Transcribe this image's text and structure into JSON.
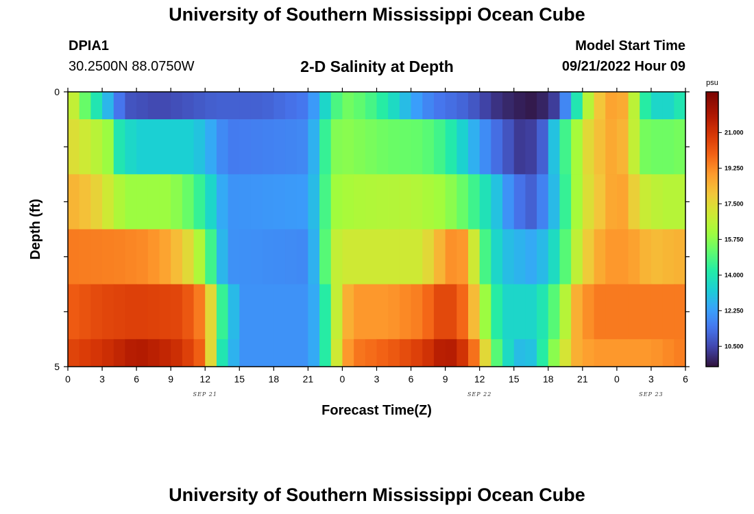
{
  "header": {
    "title": "University of Southern Mississippi Ocean Cube",
    "station_id": "DPIA1",
    "station_coords": "30.2500N  88.0750W",
    "run_label": "Model Start Time",
    "run_value": "09/21/2022 Hour 09"
  },
  "footer": {
    "title": "University of Southern Mississippi Ocean Cube"
  },
  "chart_data": {
    "type": "heatmap",
    "title": "2-D Salinity at Depth",
    "xlabel": "Forecast Time(Z)",
    "ylabel": "Depth (ft)",
    "colorbar_unit": "psu",
    "y_tick_labels": [
      {
        "depth": 0,
        "label": "0"
      },
      {
        "depth": 5,
        "label": "5"
      }
    ],
    "y_minor_ticks": [
      1,
      2,
      3,
      4
    ],
    "ylim": [
      0,
      5
    ],
    "x_range_hours": [
      0,
      54
    ],
    "x_tick_labels": [
      {
        "hour": 0,
        "label": "0"
      },
      {
        "hour": 3,
        "label": "3"
      },
      {
        "hour": 6,
        "label": "6"
      },
      {
        "hour": 9,
        "label": "9"
      },
      {
        "hour": 12,
        "label": "12"
      },
      {
        "hour": 15,
        "label": "15"
      },
      {
        "hour": 18,
        "label": "18"
      },
      {
        "hour": 21,
        "label": "21"
      },
      {
        "hour": 24,
        "label": "0"
      },
      {
        "hour": 27,
        "label": "3"
      },
      {
        "hour": 30,
        "label": "6"
      },
      {
        "hour": 33,
        "label": "9"
      },
      {
        "hour": 36,
        "label": "12"
      },
      {
        "hour": 39,
        "label": "15"
      },
      {
        "hour": 42,
        "label": "18"
      },
      {
        "hour": 45,
        "label": "21"
      },
      {
        "hour": 48,
        "label": "0"
      },
      {
        "hour": 51,
        "label": "3"
      },
      {
        "hour": 54,
        "label": "6"
      }
    ],
    "date_labels": [
      {
        "hour": 12,
        "label": "SEP 21"
      },
      {
        "hour": 36,
        "label": "SEP 22"
      },
      {
        "hour": 51,
        "label": "SEP 23"
      }
    ],
    "colorbar": {
      "range": [
        9.5,
        23.0
      ],
      "ticks": [
        10.5,
        12.25,
        14.0,
        15.75,
        17.5,
        19.25,
        21.0
      ],
      "tick_labels": [
        "10.500",
        "12.250",
        "14.000",
        "15.750",
        "17.500",
        "19.250",
        "21.000"
      ]
    },
    "layers": [
      {
        "depth_top": 0,
        "depth_bottom": 0.5,
        "keys": [
          [
            0,
            17.5
          ],
          [
            1,
            16.0
          ],
          [
            2,
            14.5
          ],
          [
            3,
            13.5
          ],
          [
            4,
            12.0
          ],
          [
            5,
            10.8
          ],
          [
            8,
            10.5
          ],
          [
            13,
            11.0
          ],
          [
            17,
            11.0
          ],
          [
            21,
            11.5
          ],
          [
            22.5,
            13.5
          ],
          [
            24,
            15.5
          ],
          [
            26,
            15.0
          ],
          [
            28,
            14.0
          ],
          [
            30,
            12.5
          ],
          [
            32,
            11.5
          ],
          [
            35,
            11.0
          ],
          [
            37,
            10.2
          ],
          [
            39,
            9.8
          ],
          [
            41,
            9.6
          ],
          [
            42.5,
            10.3
          ],
          [
            44,
            12.5
          ],
          [
            45,
            15.5
          ],
          [
            46,
            17.5
          ],
          [
            47,
            18.5
          ],
          [
            48,
            19.0
          ],
          [
            49,
            18.2
          ],
          [
            50,
            15.0
          ],
          [
            51,
            13.5
          ],
          [
            53,
            13.5
          ],
          [
            54,
            14.5
          ]
        ]
      },
      {
        "depth_top": 0.5,
        "depth_bottom": 1.5,
        "keys": [
          [
            0,
            17.5
          ],
          [
            2,
            16.8
          ],
          [
            3.5,
            16.0
          ],
          [
            4.5,
            14.0
          ],
          [
            6,
            13.3
          ],
          [
            11,
            13.3
          ],
          [
            12.5,
            12.5
          ],
          [
            14,
            11.5
          ],
          [
            21,
            11.8
          ],
          [
            22,
            13.5
          ],
          [
            23,
            15.5
          ],
          [
            24,
            15.8
          ],
          [
            28,
            15.3
          ],
          [
            31,
            15.2
          ],
          [
            33,
            14.5
          ],
          [
            35,
            13.0
          ],
          [
            37,
            11.5
          ],
          [
            39,
            10.5
          ],
          [
            40,
            10.0
          ],
          [
            41.5,
            11.0
          ],
          [
            42.5,
            13.0
          ],
          [
            44,
            15.5
          ],
          [
            45.5,
            17.5
          ],
          [
            47,
            18.5
          ],
          [
            48,
            18.8
          ],
          [
            49,
            18.0
          ],
          [
            50,
            15.5
          ],
          [
            52,
            15.3
          ],
          [
            54,
            15.5
          ]
        ]
      },
      {
        "depth_top": 1.5,
        "depth_bottom": 2.5,
        "keys": [
          [
            0,
            18.5
          ],
          [
            2,
            18.0
          ],
          [
            3.5,
            17.0
          ],
          [
            5,
            16.0
          ],
          [
            9,
            16.0
          ],
          [
            11,
            15.0
          ],
          [
            12.5,
            13.5
          ],
          [
            14,
            12.0
          ],
          [
            21,
            12.2
          ],
          [
            22,
            13.5
          ],
          [
            23,
            16.0
          ],
          [
            25,
            16.3
          ],
          [
            30,
            16.5
          ],
          [
            33,
            16.0
          ],
          [
            35,
            15.0
          ],
          [
            37,
            13.5
          ],
          [
            39,
            11.5
          ],
          [
            40.5,
            11.0
          ],
          [
            42,
            12.0
          ],
          [
            43.5,
            14.5
          ],
          [
            45,
            17.0
          ],
          [
            46.5,
            18.0
          ],
          [
            48,
            19.0
          ],
          [
            49,
            18.5
          ],
          [
            50,
            17.0
          ],
          [
            52,
            16.5
          ],
          [
            54,
            16.5
          ]
        ]
      },
      {
        "depth_top": 2.5,
        "depth_bottom": 3.5,
        "keys": [
          [
            0,
            19.5
          ],
          [
            4,
            19.4
          ],
          [
            7,
            19.2
          ],
          [
            9,
            18.6
          ],
          [
            10.5,
            17.5
          ],
          [
            12,
            15.8
          ],
          [
            13,
            13.5
          ],
          [
            14,
            12.0
          ],
          [
            21,
            11.8
          ],
          [
            22,
            13.5
          ],
          [
            23,
            16.5
          ],
          [
            24,
            17.0
          ],
          [
            31,
            17.0
          ],
          [
            32,
            18.0
          ],
          [
            34,
            19.5
          ],
          [
            35,
            18.5
          ],
          [
            36,
            15.5
          ],
          [
            37,
            14.0
          ],
          [
            38,
            13.0
          ],
          [
            40.5,
            12.5
          ],
          [
            42,
            13.0
          ],
          [
            43.5,
            15.0
          ],
          [
            45,
            17.5
          ],
          [
            47,
            19.0
          ],
          [
            49,
            19.0
          ],
          [
            51,
            18.2
          ],
          [
            54,
            18.5
          ]
        ]
      },
      {
        "depth_top": 3.5,
        "depth_bottom": 4.5,
        "keys": [
          [
            0,
            20.0
          ],
          [
            3,
            20.5
          ],
          [
            6,
            20.7
          ],
          [
            10,
            20.5
          ],
          [
            11.5,
            19.5
          ],
          [
            12.5,
            17.5
          ],
          [
            13.5,
            14.5
          ],
          [
            15,
            12.0
          ],
          [
            21,
            12.0
          ],
          [
            22,
            13.0
          ],
          [
            23,
            15.5
          ],
          [
            24,
            18.0
          ],
          [
            25,
            19.0
          ],
          [
            28,
            19.0
          ],
          [
            31,
            19.5
          ],
          [
            33,
            20.8
          ],
          [
            35,
            19.5
          ],
          [
            36,
            17.0
          ],
          [
            37,
            15.0
          ],
          [
            38,
            13.5
          ],
          [
            41,
            13.5
          ],
          [
            43,
            15.5
          ],
          [
            44.5,
            18.5
          ],
          [
            46,
            19.5
          ],
          [
            48,
            19.5
          ],
          [
            51,
            19.5
          ],
          [
            54,
            19.5
          ]
        ]
      },
      {
        "depth_top": 4.5,
        "depth_bottom": 5,
        "keys": [
          [
            0,
            20.5
          ],
          [
            3,
            21.0
          ],
          [
            6,
            21.8
          ],
          [
            8,
            21.5
          ],
          [
            10,
            21.0
          ],
          [
            11.5,
            20.0
          ],
          [
            12.5,
            17.5
          ],
          [
            13.5,
            14.0
          ],
          [
            15,
            12.0
          ],
          [
            21,
            12.0
          ],
          [
            22,
            13.0
          ],
          [
            23,
            15.5
          ],
          [
            24,
            18.5
          ],
          [
            25,
            19.5
          ],
          [
            28,
            20.0
          ],
          [
            30,
            20.5
          ],
          [
            32,
            21.2
          ],
          [
            33,
            22.0
          ],
          [
            34.5,
            21.0
          ],
          [
            36,
            19.0
          ],
          [
            37,
            16.0
          ],
          [
            38,
            14.0
          ],
          [
            40,
            12.5
          ],
          [
            41,
            13.5
          ],
          [
            42,
            15.0
          ],
          [
            43,
            16.5
          ],
          [
            44.5,
            18.5
          ],
          [
            46,
            19.0
          ],
          [
            48,
            19.0
          ],
          [
            51,
            19.0
          ],
          [
            54,
            19.5
          ]
        ]
      }
    ]
  }
}
